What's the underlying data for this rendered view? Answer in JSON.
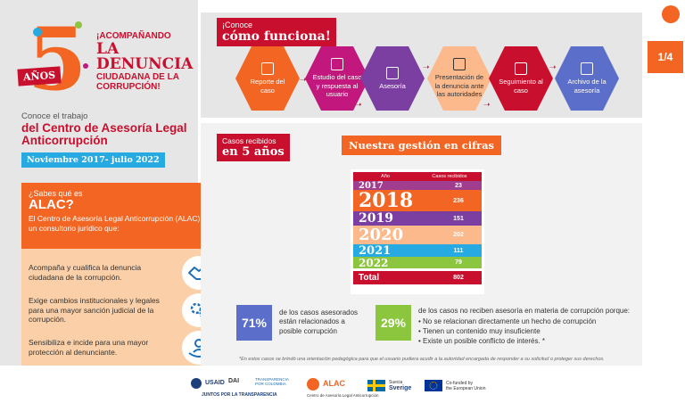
{
  "campaign": {
    "number": "5",
    "years_badge": "AÑOS",
    "line1": "¡ACOMPAÑANDO",
    "line2": "LA DENUNCIA",
    "line3": "CIUDADANA DE LA",
    "line4": "CORRUPCIÓN!"
  },
  "intro": {
    "lead": "Conoce el trabajo",
    "title": "del Centro de Asesoría Legal Anticorrupción",
    "period": "Noviembre 2017- julio 2022"
  },
  "alac": {
    "question": "¿Sabes qué es",
    "name": "ALAC?",
    "description": "El Centro de Asesoría Legal Anticorrupción (ALAC) es un consultorio jurídico que:",
    "items": [
      {
        "text": "Acompaña y cualifica la denuncia ciudadana de la corrupción.",
        "icon": "handshake-icon"
      },
      {
        "text": "Exige cambios institucionales y legales para una mayor sanción judicial de la corrupción.",
        "icon": "gears-icon"
      },
      {
        "text": "Sensibiliza e incide para una mayor protección al denunciante.",
        "icon": "protected-person-icon"
      }
    ]
  },
  "process": {
    "lead": "¡Conoce",
    "title": "cómo funciona!",
    "steps": [
      {
        "label": "Reporte del caso",
        "color": "#f26522",
        "icon": "report-icon"
      },
      {
        "label": "Estudio del caso y respuesta al usuario",
        "color": "#c2187e",
        "icon": "document-icon"
      },
      {
        "label": "Asesoría",
        "color": "#7a3fa0",
        "icon": "chat-icon"
      },
      {
        "label": "Presentación de la denuncia ante las autoridades",
        "color": "#fbb98c",
        "icon": "people-icon"
      },
      {
        "label": "Seguimiento al caso",
        "color": "#c8102e",
        "icon": "magnifier-icon"
      },
      {
        "label": "Archivo de la asesoría",
        "color": "#5b6ec9",
        "icon": "folder-icon"
      }
    ]
  },
  "page_indicator": "1/4",
  "cases": {
    "lead": "Casos recibidos",
    "title": "en 5 años",
    "section_title": "Nuestra gestión en cifras",
    "table": {
      "col_year": "Año",
      "col_cases": "Casos recibidos",
      "rows": [
        {
          "year": "2017",
          "value": "23",
          "color": "#a13d8f"
        },
        {
          "year": "2018",
          "value": "236",
          "color": "#f26522"
        },
        {
          "year": "2019",
          "value": "151",
          "color": "#7a3fa0"
        },
        {
          "year": "2020",
          "value": "202",
          "color": "#fbb98c"
        },
        {
          "year": "2021",
          "value": "111",
          "color": "#27a9e1"
        },
        {
          "year": "2022",
          "value": "79",
          "color": "#8cc63f"
        }
      ],
      "total_label": "Total",
      "total_value": "802"
    }
  },
  "stats": {
    "stat1_value": "71%",
    "stat1_text": "de los casos asesorados están relacionados a posible corrupción",
    "stat2_value": "29%",
    "stat2_text": "de los casos no reciben asesoría en materia de corrupción porque:",
    "stat2_reasons": [
      "No se relacionan directamente un hecho de corrupción",
      "Tienen un contenido muy insuficiente",
      "Existe un posible conflicto de interés. *"
    ],
    "footnote": "*En estos casos se brindó una orientación pedagógica para que el usuario pudiera acudir a la autoridad encargada de responder a su solicitud o proteger sus derechos."
  },
  "footer": {
    "usaid": "USAID",
    "dai": "DAI",
    "transparencia": "TRANSPARENCIA POR COLOMBIA",
    "juntos": "JUNTOS POR LA TRANSPARENCIA",
    "alac": "ALAC",
    "alac_sub": "Centro de Asesoría Legal Anticorrupción",
    "suecia": "Suecia",
    "sverige": "Sverige",
    "eu_line1": "Co-funded by",
    "eu_line2": "the European Union"
  }
}
